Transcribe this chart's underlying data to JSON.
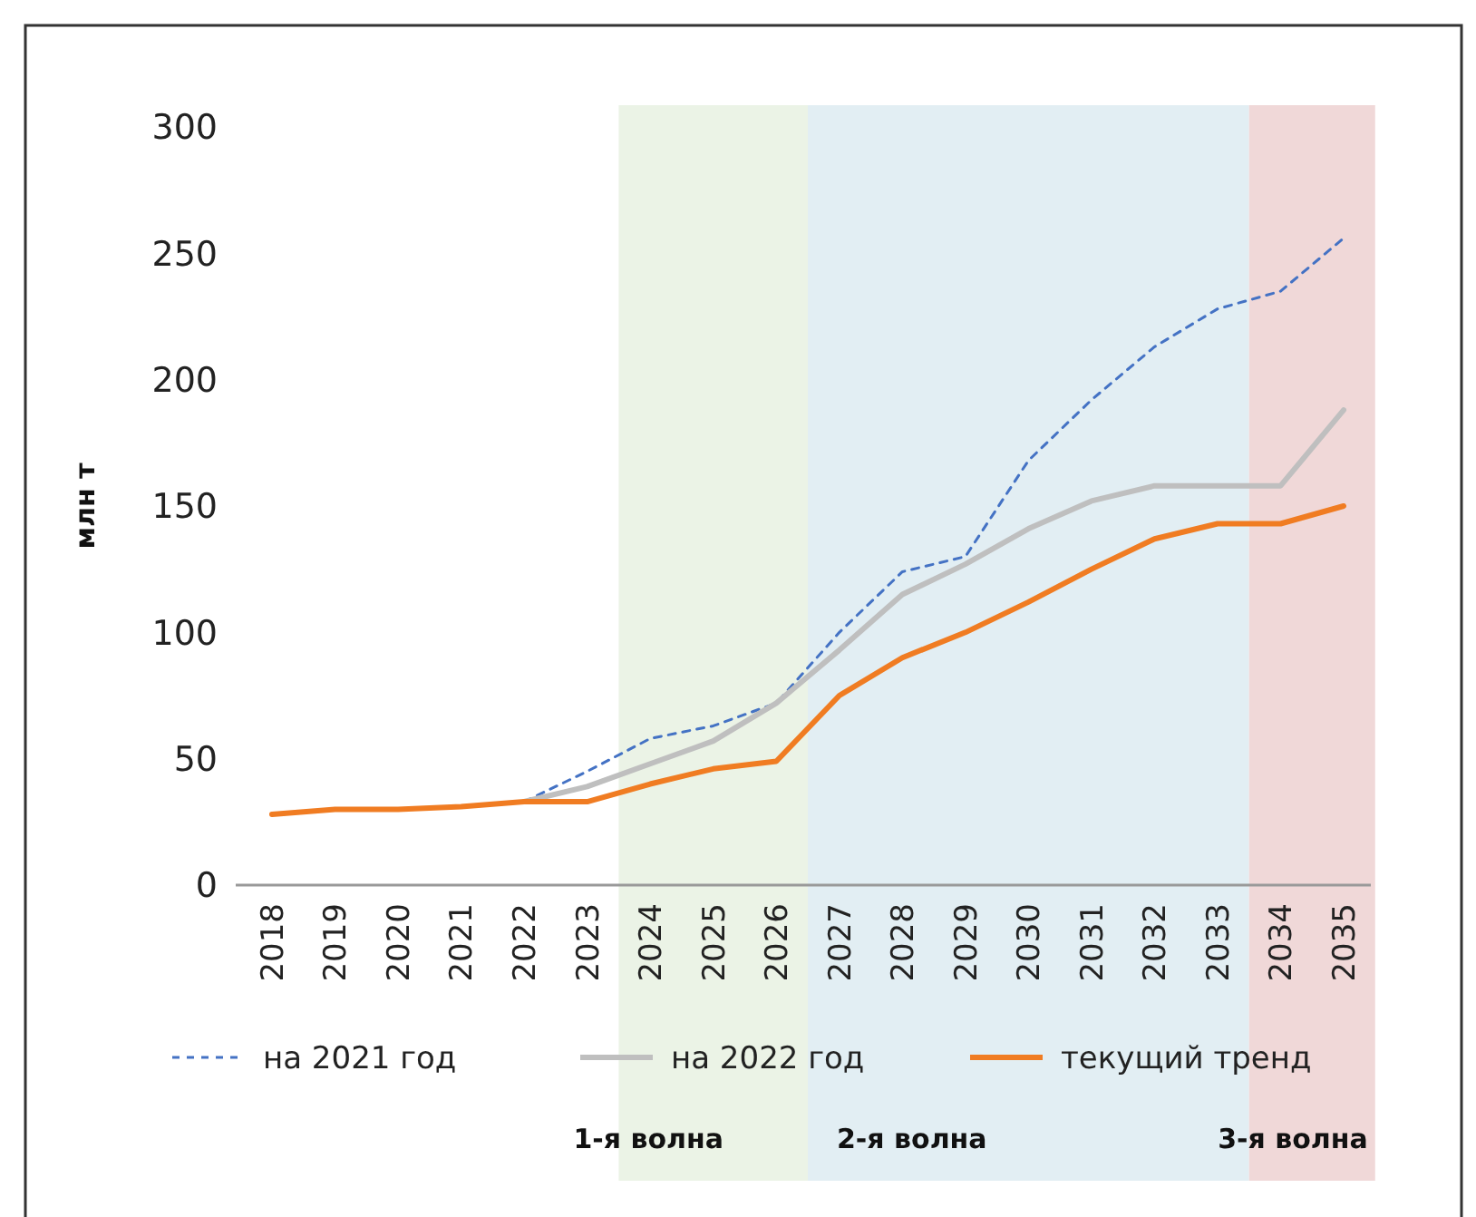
{
  "chart_data": {
    "type": "line",
    "ylabel": "млн т",
    "categories": [
      "2018",
      "2019",
      "2020",
      "2021",
      "2022",
      "2023",
      "2024",
      "2025",
      "2026",
      "2027",
      "2028",
      "2029",
      "2030",
      "2031",
      "2032",
      "2033",
      "2034",
      "2035"
    ],
    "series": [
      {
        "name": "на 2021 год",
        "color": "#4472c4",
        "line_style": "dashed",
        "values": [
          null,
          null,
          null,
          null,
          33,
          45,
          58,
          63,
          72,
          100,
          124,
          130,
          168,
          192,
          213,
          228,
          235,
          256
        ]
      },
      {
        "name": "на 2022 год",
        "color": "#bfbfbf",
        "line_style": "solid",
        "values": [
          null,
          null,
          null,
          null,
          33,
          39,
          48,
          57,
          72,
          93,
          115,
          127,
          141,
          152,
          158,
          158,
          158,
          188
        ]
      },
      {
        "name": "текущий тренд",
        "color": "#f07c22",
        "line_style": "solid",
        "values": [
          28,
          30,
          30,
          31,
          33,
          33,
          40,
          46,
          49,
          75,
          90,
          100,
          112,
          125,
          137,
          143,
          143,
          150
        ]
      }
    ],
    "ylim": [
      0,
      300
    ],
    "yticks": [
      0,
      50,
      100,
      150,
      200,
      250,
      300
    ],
    "grid": false,
    "legend": "bottom",
    "marker": "none",
    "bands": [
      {
        "axis": "x",
        "from": "2024",
        "to": "2026",
        "label": "1-я волна",
        "color": "#ebf3e6"
      },
      {
        "axis": "x",
        "from": "2027",
        "to": "2033",
        "label": "2-я волна",
        "color": "#e2eef3"
      },
      {
        "axis": "x",
        "from": "2034",
        "to": "2035",
        "label": "3-я волна",
        "color": "#f0d8d8"
      }
    ]
  }
}
